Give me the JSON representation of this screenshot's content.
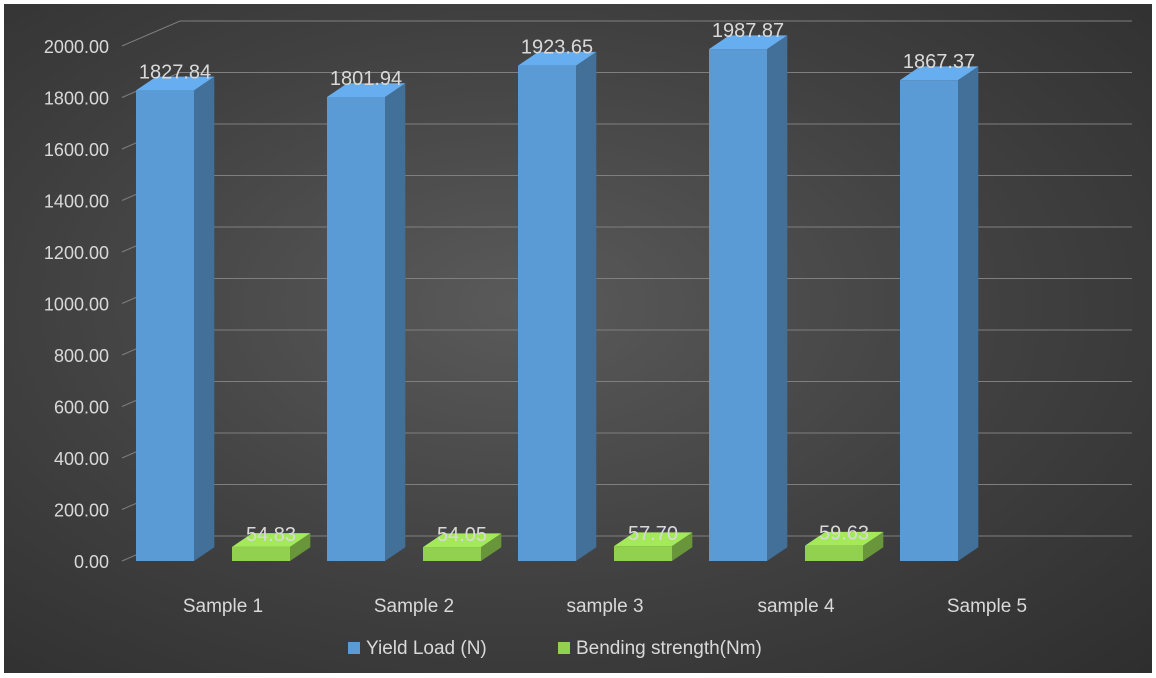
{
  "chart_data": {
    "type": "bar",
    "categories": [
      "Sample 1",
      "Sample 2",
      "sample 3",
      "sample 4",
      "Sample 5"
    ],
    "series": [
      {
        "name": "Yield Load (N)",
        "values": [
          1827.84,
          1801.94,
          1923.65,
          1987.87,
          1867.37
        ],
        "labels": [
          "1827.84",
          "1801.94",
          "1923.65",
          "1987.87",
          "1867.37"
        ],
        "color": "#5b9bd5"
      },
      {
        "name": "Bending strength(Nm)",
        "values": [
          54.83,
          54.05,
          57.7,
          59.63,
          null
        ],
        "labels": [
          "54.83",
          "54.05",
          "57.70",
          "59.63",
          ""
        ],
        "color": "#92d050"
      }
    ],
    "y_ticks": [
      "0.00",
      "200.00",
      "400.00",
      "600.00",
      "800.00",
      "1000.00",
      "1200.00",
      "1400.00",
      "1600.00",
      "1800.00",
      "2000.00"
    ],
    "ylim": [
      0,
      2000
    ],
    "grid": true,
    "legend_position": "bottom",
    "style": "3d-clustered-column",
    "colors": {
      "background": "#404040",
      "text": "#d9d9d9",
      "gridline": "#7f7f7f"
    }
  }
}
